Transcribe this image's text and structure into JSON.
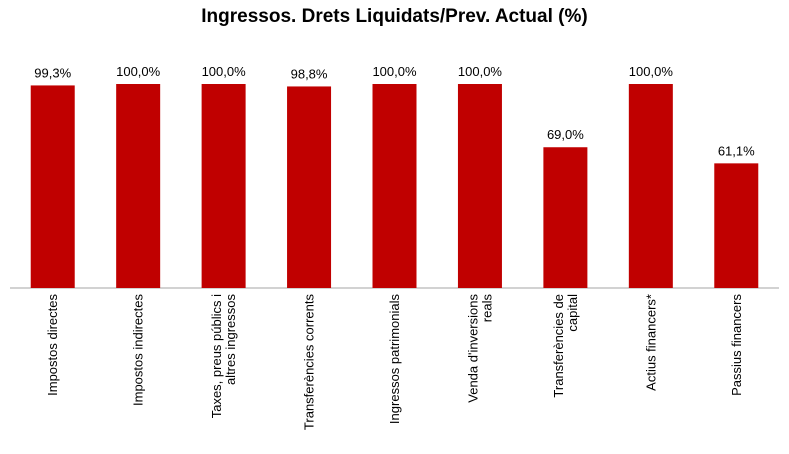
{
  "chart_data": {
    "type": "bar",
    "title": "Ingressos. Drets Liquidats/Prev. Actual (%)",
    "categories": [
      [
        "Impostos directes"
      ],
      [
        "Impostos indirectes"
      ],
      [
        "Taxes, preus públics i",
        "altres ingressos"
      ],
      [
        "Transferències corrents"
      ],
      [
        "Ingressos patrimonials"
      ],
      [
        "Venda d'inversions",
        "reals"
      ],
      [
        "Transferències de",
        "capital"
      ],
      [
        "Actius financers*"
      ],
      [
        "Passius financers"
      ]
    ],
    "values": [
      99.3,
      100.0,
      100.0,
      98.8,
      100.0,
      100.0,
      69.0,
      100.0,
      61.1
    ],
    "data_labels": [
      "99,3%",
      "100,0%",
      "100,0%",
      "98,8%",
      "100,0%",
      "100,0%",
      "69,0%",
      "100,0%",
      "61,1%"
    ],
    "ylim": [
      0,
      100
    ],
    "bar_color": "#C00000",
    "grid": false,
    "legend": "none"
  }
}
